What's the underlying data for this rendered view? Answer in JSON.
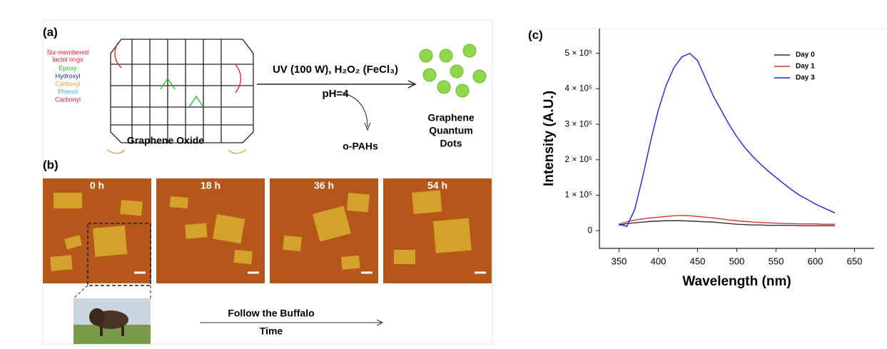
{
  "panel_a": {
    "label": "(a)",
    "groups": [
      "Six-membered",
      "lactol rings",
      "Epoxy",
      "Hydroxyl",
      "Carboxyl",
      "Phenol",
      "Carbonyl"
    ],
    "reactant": "Graphene Oxide",
    "conditions": "UV (100 W), H₂O₂ (FeCl₃)",
    "ph": "pH=4",
    "byproduct": "o-PAHs",
    "product": [
      "Graphene",
      "Quantum",
      "Dots"
    ]
  },
  "panel_b": {
    "label": "(b)",
    "times": [
      "0 h",
      "18 h",
      "36 h",
      "54 h"
    ],
    "caption": "Follow the Buffalo",
    "axis": "Time"
  },
  "panel_c": {
    "label": "(c)"
  },
  "chart_data": {
    "type": "line",
    "x_label": "Wavelength (nm)",
    "y_label": "Intensity (A.U.)",
    "x": [
      350,
      360,
      370,
      380,
      390,
      400,
      410,
      420,
      430,
      440,
      450,
      460,
      470,
      480,
      490,
      500,
      510,
      520,
      530,
      540,
      550,
      560,
      570,
      580,
      590,
      600,
      610,
      625
    ],
    "series": [
      {
        "name": "Day 0",
        "color": "#333333",
        "values": [
          15000,
          20000,
          22000,
          24000,
          26000,
          27000,
          28000,
          28000,
          28000,
          27000,
          26000,
          25000,
          24000,
          22000,
          20000,
          18000,
          17000,
          16000,
          16000,
          15000,
          15000,
          15000,
          15000,
          14000,
          14000,
          14000,
          14000,
          14000
        ]
      },
      {
        "name": "Day 1",
        "color": "#e03030",
        "values": [
          18000,
          25000,
          30000,
          33000,
          36000,
          38000,
          40000,
          42000,
          43000,
          42000,
          40000,
          38000,
          36000,
          33000,
          30000,
          28000,
          26000,
          24000,
          23000,
          22000,
          21000,
          20000,
          20000,
          19000,
          19000,
          19000,
          18000,
          18000
        ]
      },
      {
        "name": "Day 3",
        "color": "#2020e0",
        "values": [
          18000,
          12000,
          60000,
          150000,
          250000,
          340000,
          410000,
          460000,
          490000,
          500000,
          480000,
          430000,
          380000,
          340000,
          300000,
          265000,
          235000,
          210000,
          188000,
          168000,
          150000,
          132000,
          115000,
          100000,
          88000,
          75000,
          65000,
          50000
        ]
      }
    ],
    "xlim": [
      325,
      675
    ],
    "xticks": [
      350,
      400,
      450,
      500,
      550,
      600,
      650
    ],
    "ylim": [
      -50000,
      570000
    ],
    "yticks": [
      0,
      {
        "value": 100000,
        "label": "1 × 10⁵"
      },
      {
        "value": 200000,
        "label": "2 × 10⁵"
      },
      {
        "value": 300000,
        "label": "3 × 10⁵"
      },
      {
        "value": 400000,
        "label": "4 × 10⁵"
      },
      {
        "value": 500000,
        "label": "5 × 10⁵"
      }
    ],
    "legend": "upper right"
  }
}
